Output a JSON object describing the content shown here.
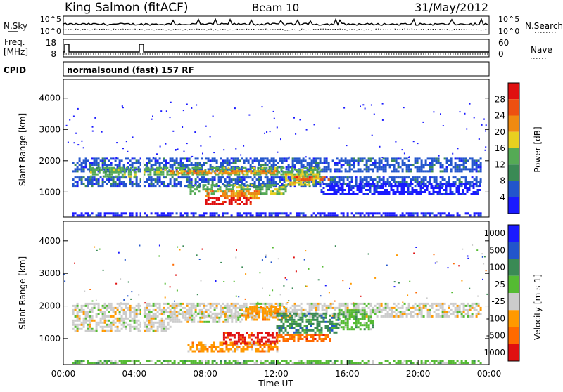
{
  "header": {
    "station": "King Salmon (fitACF)",
    "beam": "Beam 10",
    "date": "31/May/2012"
  },
  "noise_panel": {
    "left_label": "N.Sky",
    "left_ticks": [
      "10^5",
      "10^0"
    ],
    "right_ticks": [
      "10^5",
      "10^0"
    ],
    "right_label": "N.Search"
  },
  "freq_panel": {
    "left_label_1": "Freq.",
    "left_label_2": "[MHz]",
    "left_ticks": [
      "18",
      "8"
    ],
    "right_ticks": [
      "60",
      "0"
    ],
    "right_label": "Nave"
  },
  "cpid": {
    "label": "CPID",
    "value": "normalsound (fast) 157 RF"
  },
  "colors": {
    "power_scale": [
      "#1a1aff",
      "#2255cc",
      "#3a8a55",
      "#55aa55",
      "#e8d020",
      "#f08a10",
      "#ee5010",
      "#e01010"
    ],
    "velocity_scale": [
      "#1a1aff",
      "#2255cc",
      "#3a8a55",
      "#55bb33",
      "#cccccc",
      "#ff9900",
      "#ff6a00",
      "#e01010"
    ]
  },
  "chart_data": [
    {
      "type": "heatmap",
      "panel": "power",
      "ylabel": "Slant Range [km]",
      "yticks": [
        "1000",
        "2000",
        "3000",
        "4000"
      ],
      "ylim": [
        200,
        4600
      ],
      "xlim": [
        0,
        24
      ],
      "colorbar_label": "Power [dB]",
      "colorbar_ticks": [
        "4",
        "8",
        "12",
        "16",
        "20",
        "24",
        "28"
      ],
      "bands": [
        {
          "t0": 0.5,
          "t1": 23.5,
          "r0": 1650,
          "r1": 2100,
          "level": 1
        },
        {
          "t0": 0.5,
          "t1": 23.5,
          "r0": 1200,
          "r1": 1500,
          "level": 1
        },
        {
          "t0": 1.5,
          "t1": 4.0,
          "r0": 1500,
          "r1": 1800,
          "level": 3
        },
        {
          "t0": 4.5,
          "t1": 14.5,
          "r0": 1550,
          "r1": 1800,
          "level": 3
        },
        {
          "t0": 6.0,
          "t1": 12.0,
          "r0": 1600,
          "r1": 1700,
          "level": 5
        },
        {
          "t0": 7.0,
          "t1": 12.5,
          "r0": 950,
          "r1": 1250,
          "level": 3
        },
        {
          "t0": 8.0,
          "t1": 11.0,
          "r0": 800,
          "r1": 1050,
          "level": 5
        },
        {
          "t0": 8.0,
          "t1": 10.5,
          "r0": 600,
          "r1": 850,
          "level": 7
        },
        {
          "t0": 12.5,
          "t1": 14.5,
          "r0": 1200,
          "r1": 1600,
          "level": 4
        },
        {
          "t0": 13.0,
          "t1": 15.0,
          "r0": 1400,
          "r1": 1500,
          "level": 6
        },
        {
          "t0": 14.5,
          "t1": 23.5,
          "r0": 900,
          "r1": 1300,
          "level": 0
        },
        {
          "t0": 0.5,
          "t1": 23.5,
          "r0": 250,
          "r1": 350,
          "level": 0
        }
      ]
    },
    {
      "type": "heatmap",
      "panel": "velocity",
      "ylabel": "Slant Range [km]",
      "yticks": [
        "1000",
        "2000",
        "3000",
        "4000"
      ],
      "ylim": [
        200,
        4600
      ],
      "xlim": [
        0,
        24
      ],
      "xlabel": "Time UT",
      "xticks": [
        "00:00",
        "04:00",
        "08:00",
        "12:00",
        "16:00",
        "20:00",
        "00:00"
      ],
      "colorbar_label": "Velocity [m s-1]",
      "colorbar_ticks": [
        "1000",
        "500",
        "100",
        "25",
        "-25",
        "-100",
        "-500",
        "-1000"
      ],
      "bands": [
        {
          "t0": 0.5,
          "t1": 23.5,
          "r0": 1650,
          "r1": 2100,
          "level": 4
        },
        {
          "t0": 0.5,
          "t1": 6.0,
          "r0": 1200,
          "r1": 1650,
          "level": 4
        },
        {
          "t0": 6.0,
          "t1": 10.0,
          "r0": 1500,
          "r1": 1800,
          "level": 4
        },
        {
          "t0": 10.0,
          "t1": 12.5,
          "r0": 1600,
          "r1": 2000,
          "level": 5
        },
        {
          "t0": 12.0,
          "t1": 15.5,
          "r0": 1200,
          "r1": 1800,
          "level": 2
        },
        {
          "t0": 15.5,
          "t1": 17.5,
          "r0": 1300,
          "r1": 1900,
          "level": 3
        },
        {
          "t0": 7.0,
          "t1": 12.0,
          "r0": 600,
          "r1": 900,
          "level": 5
        },
        {
          "t0": 9.0,
          "t1": 12.0,
          "r0": 850,
          "r1": 1200,
          "level": 7
        },
        {
          "t0": 12.0,
          "t1": 15.0,
          "r0": 900,
          "r1": 1150,
          "level": 6
        },
        {
          "t0": 0.5,
          "t1": 23.5,
          "r0": 250,
          "r1": 350,
          "level": 3
        }
      ]
    }
  ]
}
